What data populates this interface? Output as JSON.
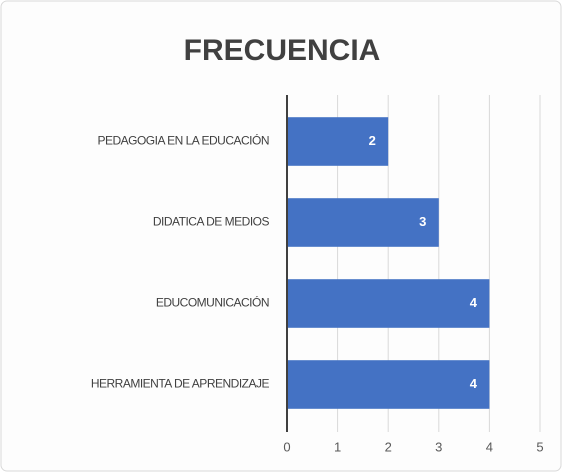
{
  "chart_data": {
    "type": "bar",
    "orientation": "horizontal",
    "title": "FRECUENCIA",
    "categories": [
      "PEDAGOGIA EN LA EDUCACIÓN",
      "DIDATICA DE MEDIOS",
      "EDUCOMUNICACIÓN",
      "HERRAMIENTA DE APRENDIZAJE"
    ],
    "values": [
      2,
      3,
      4,
      4
    ],
    "color": "#4472c4",
    "xlim": [
      0,
      5
    ],
    "xticks": [
      0,
      1,
      2,
      3,
      4,
      5
    ],
    "grid": true
  }
}
